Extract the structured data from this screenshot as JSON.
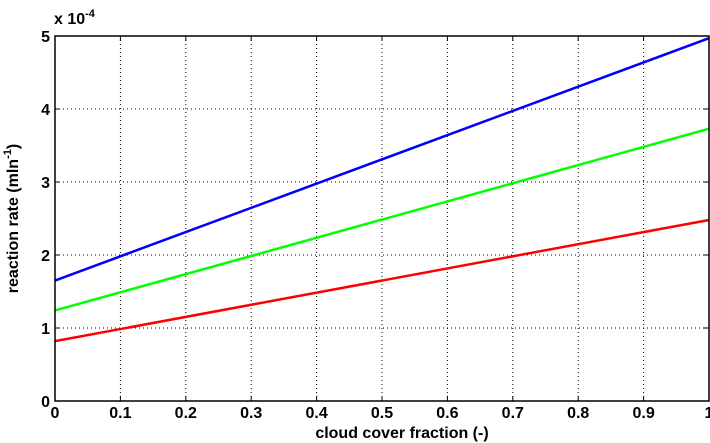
{
  "chart_data": {
    "type": "line",
    "title": "",
    "xlabel": "cloud cover fraction (-)",
    "ylabel_main": "reaction rate (mln",
    "ylabel_sup": "-1",
    "ylabel_close": ")",
    "y_multiplier_base": "x 10",
    "y_multiplier_exp": "-4",
    "xlim": [
      0,
      1
    ],
    "ylim": [
      0,
      5
    ],
    "xticks": [
      "0",
      "0.1",
      "0.2",
      "0.3",
      "0.4",
      "0.5",
      "0.6",
      "0.7",
      "0.8",
      "0.9",
      "1"
    ],
    "yticks": [
      "0",
      "1",
      "2",
      "3",
      "4",
      "5"
    ],
    "grid": true,
    "legend": "none",
    "series": [
      {
        "x": [
          0,
          1
        ],
        "values": [
          1.65,
          4.97
        ],
        "color": "#0000ff"
      },
      {
        "x": [
          0,
          1
        ],
        "values": [
          1.24,
          3.73
        ],
        "color": "#00ff00"
      },
      {
        "x": [
          0,
          1
        ],
        "values": [
          0.82,
          2.48
        ],
        "color": "#ff0000"
      }
    ]
  }
}
